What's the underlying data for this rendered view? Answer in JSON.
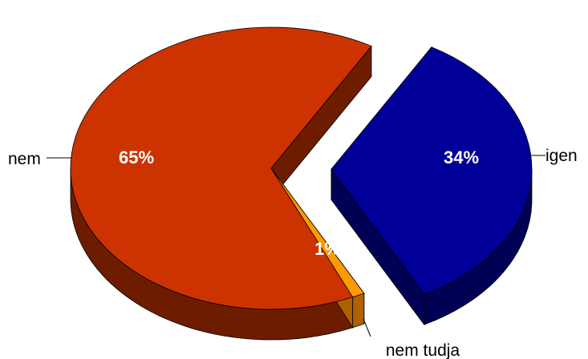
{
  "chart_data": {
    "type": "pie",
    "style": "3d-exploded",
    "title": "",
    "categories": [
      "nem",
      "igen",
      "nem tudja"
    ],
    "values": [
      65,
      34,
      1
    ],
    "value_labels": [
      "65%",
      "34%",
      "1%"
    ],
    "exploded": [
      "igen"
    ],
    "colors": {
      "nem": "#CC3300",
      "igen": "#000099",
      "nem tudja": "#FF9900"
    },
    "side_colors": {
      "nem": "#6E1C00",
      "igen": "#000055",
      "nem tudja": "#B06000"
    },
    "legend": "none"
  }
}
